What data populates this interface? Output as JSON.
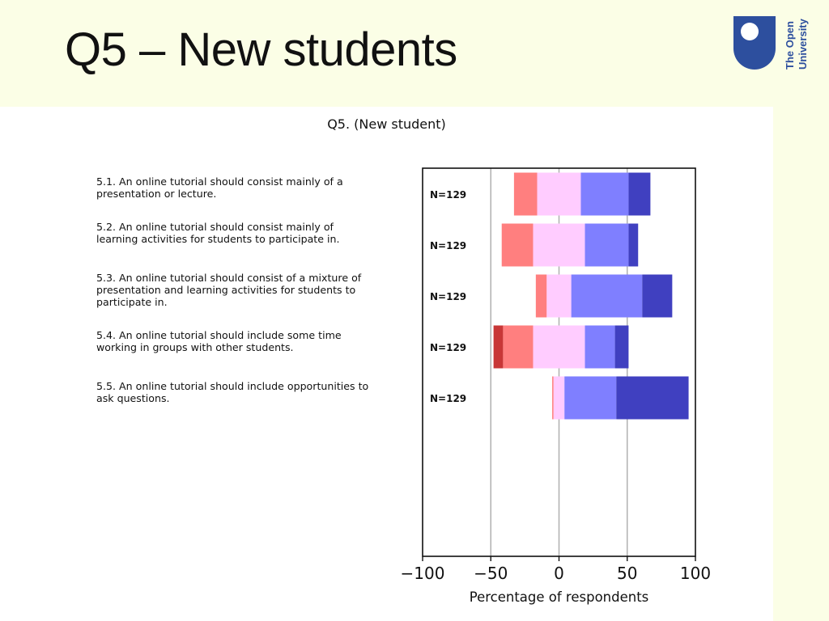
{
  "slide_title": "Q5 – New students",
  "logo": {
    "text_line1": "The Open",
    "text_line2": "University",
    "color": "#2d4f9e"
  },
  "colors": {
    "strongly_disagree": "#c83737",
    "disagree": "#ff7f7f",
    "neutral": "#ffccff",
    "agree": "#7f7fff",
    "strongly_agree": "#4040c0",
    "gridline": "#b0b0b0"
  },
  "chart_data": {
    "type": "bar",
    "orientation": "horizontal-diverging",
    "title": "Q5. (New student)",
    "xlabel": "Percentage of respondents",
    "xlim": [
      -100,
      100
    ],
    "xticks": [
      -100,
      -50,
      0,
      50,
      100
    ],
    "xtick_labels": [
      "−100",
      "−50",
      "0",
      "50",
      "100"
    ],
    "gridlines_x": [
      -50,
      0,
      50
    ],
    "segment_order": [
      "strongly_disagree",
      "disagree",
      "neutral",
      "agree",
      "strongly_agree"
    ],
    "items": [
      {
        "question": "5.1. An online tutorial should consist mainly of a presentation or lecture.",
        "n_label": "N=129",
        "segments": [
          -33,
          -16,
          16,
          51,
          67
        ]
      },
      {
        "question": "5.2. An online tutorial should consist mainly of learning activities for students to participate in.",
        "n_label": "N=129",
        "segments": [
          -42,
          -42,
          -19,
          19,
          51,
          58
        ]
      },
      {
        "question": "5.3. An online tutorial should consist of a mixture of presentation and learning activities for students to participate in.",
        "n_label": "N=129",
        "segments": [
          -17,
          -17,
          -9,
          9,
          61,
          83
        ]
      },
      {
        "question": "5.4. An online tutorial should include some time working in groups with other students.",
        "n_label": "N=129",
        "segments": [
          -48,
          -41,
          -19,
          19,
          41,
          51
        ]
      },
      {
        "question": "5.5. An online tutorial should include opportunities to ask questions.",
        "n_label": "N=129",
        "segments": [
          -5,
          -5,
          -4,
          4,
          42,
          95
        ]
      }
    ]
  }
}
